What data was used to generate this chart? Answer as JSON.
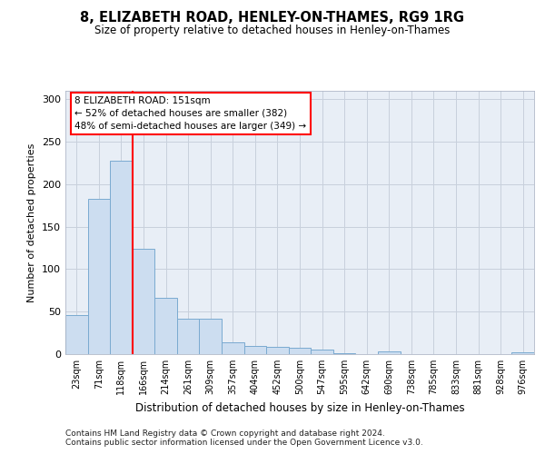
{
  "title": "8, ELIZABETH ROAD, HENLEY-ON-THAMES, RG9 1RG",
  "subtitle": "Size of property relative to detached houses in Henley-on-Thames",
  "xlabel": "Distribution of detached houses by size in Henley-on-Thames",
  "ylabel": "Number of detached properties",
  "footnote1": "Contains HM Land Registry data © Crown copyright and database right 2024.",
  "footnote2": "Contains public sector information licensed under the Open Government Licence v3.0.",
  "categories": [
    "23sqm",
    "71sqm",
    "118sqm",
    "166sqm",
    "214sqm",
    "261sqm",
    "309sqm",
    "357sqm",
    "404sqm",
    "452sqm",
    "500sqm",
    "547sqm",
    "595sqm",
    "642sqm",
    "690sqm",
    "738sqm",
    "785sqm",
    "833sqm",
    "881sqm",
    "928sqm",
    "976sqm"
  ],
  "values": [
    46,
    183,
    228,
    124,
    66,
    42,
    42,
    14,
    10,
    9,
    8,
    5,
    1,
    0,
    3,
    0,
    0,
    0,
    0,
    0,
    2
  ],
  "bar_color": "#ccddf0",
  "bar_edge_color": "#7aaad0",
  "red_line_x": 2.5,
  "property_label": "8 ELIZABETH ROAD: 151sqm",
  "annotation_line1": "← 52% of detached houses are smaller (382)",
  "annotation_line2": "48% of semi-detached houses are larger (349) →",
  "ylim": [
    0,
    310
  ],
  "yticks": [
    0,
    50,
    100,
    150,
    200,
    250,
    300
  ],
  "bg_color": "#ffffff",
  "grid_color": "#c8d0dc",
  "plot_bg_color": "#e8eef6"
}
